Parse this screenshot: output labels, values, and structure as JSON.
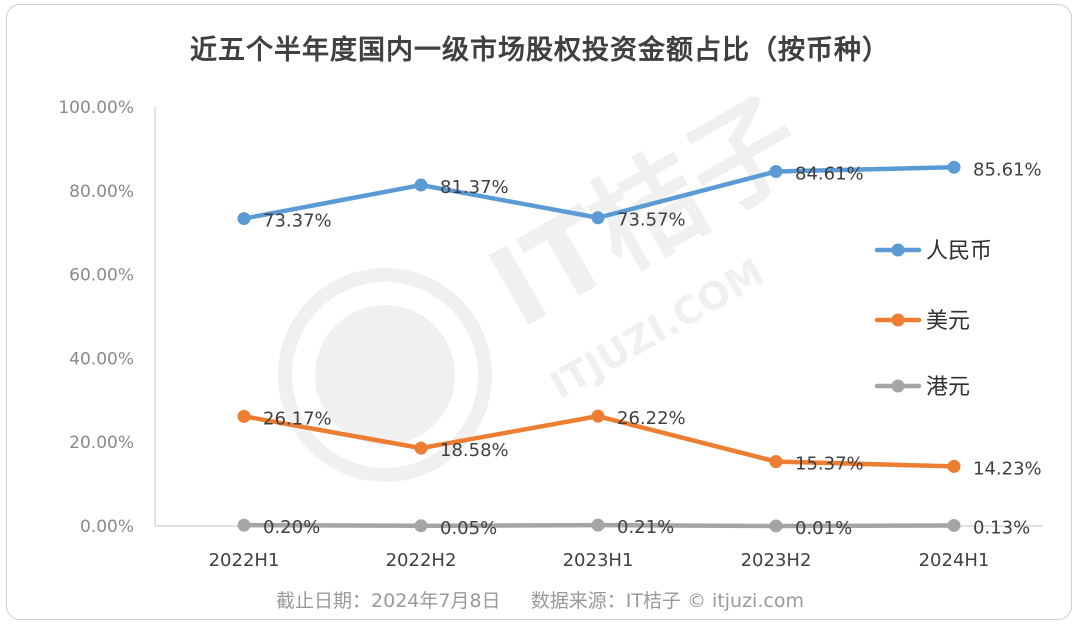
{
  "chart_data": {
    "type": "line",
    "title": "近五个半年度国内一级市场股权投资金额占比（按币种）",
    "categories": [
      "2022H1",
      "2022H2",
      "2023H1",
      "2023H2",
      "2024H1"
    ],
    "ylim": [
      0,
      100
    ],
    "yticks": [
      "0.00%",
      "20.00%",
      "40.00%",
      "60.00%",
      "80.00%",
      "100.00%"
    ],
    "legend_position": "right",
    "grid": false,
    "series": [
      {
        "name": "人民币",
        "color": "#5b9bd5",
        "values": [
          73.37,
          81.37,
          73.57,
          84.61,
          85.61
        ],
        "labels": [
          "73.37%",
          "81.37%",
          "73.57%",
          "84.61%",
          "85.61%"
        ]
      },
      {
        "name": "美元",
        "color": "#ed7d31",
        "values": [
          26.17,
          18.58,
          26.22,
          15.37,
          14.23
        ],
        "labels": [
          "26.17%",
          "18.58%",
          "26.22%",
          "15.37%",
          "14.23%"
        ]
      },
      {
        "name": "港元",
        "color": "#a5a5a5",
        "values": [
          0.2,
          0.05,
          0.21,
          0.01,
          0.13
        ],
        "labels": [
          "0.20%",
          "0.05%",
          "0.21%",
          "0.01%",
          "0.13%"
        ]
      }
    ]
  },
  "footer": {
    "date_text": "截止日期：2024年7月8日",
    "source_text": "数据来源：IT桔子 © itjuzi.com"
  },
  "watermark": {
    "text": "IT桔子",
    "url": "ITJUZI.COM"
  }
}
